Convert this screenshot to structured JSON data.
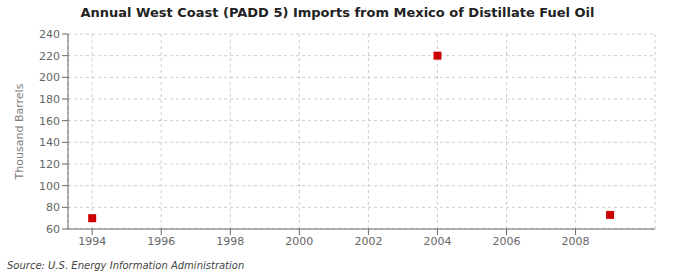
{
  "chart_data": {
    "type": "scatter",
    "title": "Annual West Coast (PADD 5) Imports from Mexico of Distillate Fuel Oil",
    "ylabel": "Thousand Barrels",
    "source": "Source: U.S. Energy Information Administration",
    "x": [
      1994,
      2004,
      2009
    ],
    "values": [
      70,
      220,
      73
    ],
    "xlim": [
      1993.3,
      2010.3
    ],
    "xticks": [
      1994,
      1996,
      1998,
      2000,
      2002,
      2004,
      2006,
      2008
    ],
    "ylim": [
      60,
      240
    ],
    "yticks": [
      60,
      80,
      100,
      120,
      140,
      160,
      180,
      200,
      220,
      240
    ],
    "color": "#cc0000",
    "marker": "square",
    "grid": true
  }
}
